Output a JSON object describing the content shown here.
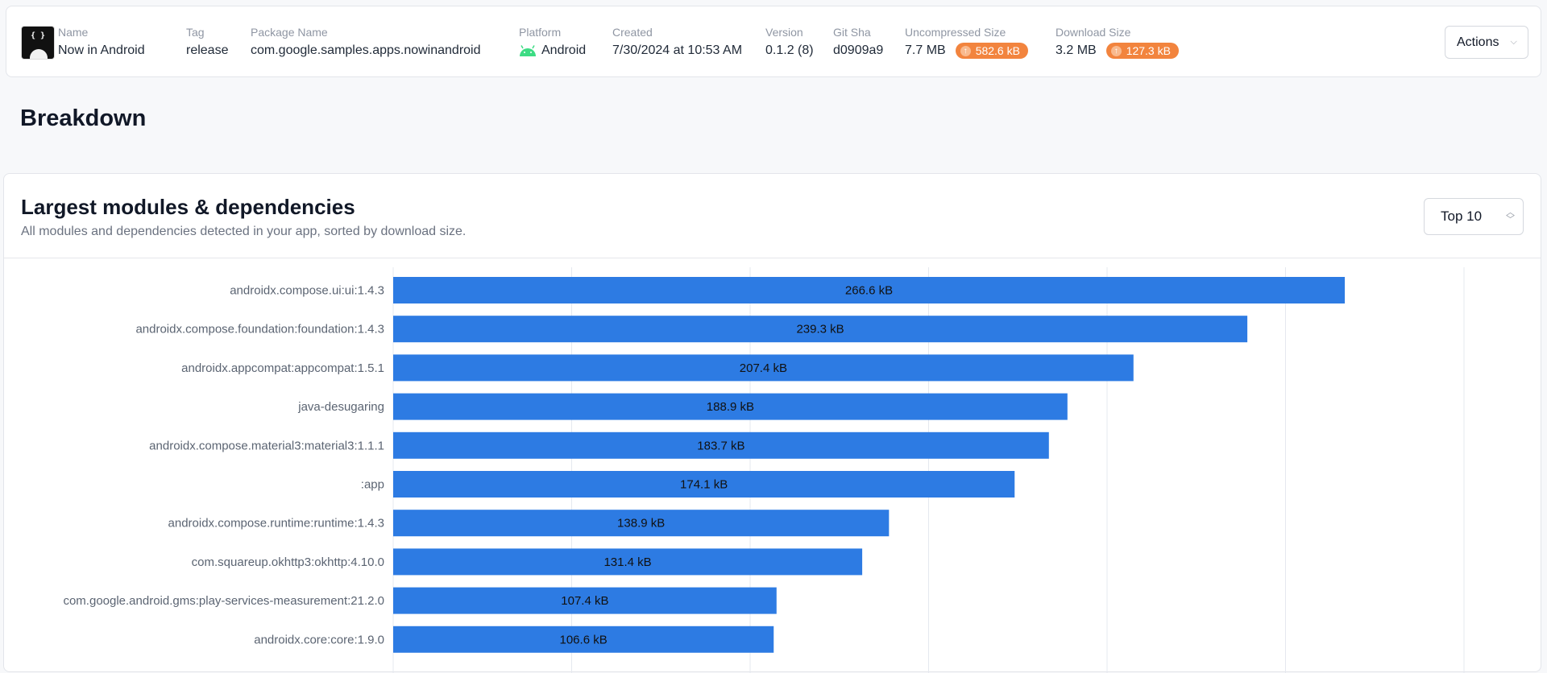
{
  "header": {
    "logo_icon": "android-code-logo",
    "fields": [
      {
        "label": "Name",
        "value": "Now in Android"
      },
      {
        "label": "Tag",
        "value": "release"
      },
      {
        "label": "Package Name",
        "value": "com.google.samples.apps.nowinandroid"
      },
      {
        "label": "Platform",
        "value": "Android",
        "icon": "android-icon"
      },
      {
        "label": "Created",
        "value": "7/30/2024 at 10:53 AM"
      },
      {
        "label": "Version",
        "value": "0.1.2 (8)"
      },
      {
        "label": "Git Sha",
        "value": "d0909a9"
      },
      {
        "label": "Uncompressed Size",
        "value": "7.7 MB",
        "delta": "582.6 kB"
      },
      {
        "label": "Download Size",
        "value": "3.2 MB",
        "delta": "127.3 kB"
      }
    ],
    "actions_label": "Actions"
  },
  "page_title": "Breakdown",
  "panel": {
    "title": "Largest modules & dependencies",
    "subtitle": "All modules and dependencies detected in your app, sorted by download size.",
    "select_value": "Top 10"
  },
  "colors": {
    "bar": "#2d7be3",
    "badge": "#f2843e",
    "link": "#3b82f6",
    "android": "#3ddc84"
  },
  "chart_data": {
    "type": "bar",
    "orientation": "horizontal",
    "categories": [
      "androidx.compose.ui:ui:1.4.3",
      "androidx.compose.foundation:foundation:1.4.3",
      "androidx.appcompat:appcompat:1.5.1",
      "java-desugaring",
      "androidx.compose.material3:material3:1.1.1",
      ":app",
      "androidx.compose.runtime:runtime:1.4.3",
      "com.squareup.okhttp3:okhttp:4.10.0",
      "com.google.android.gms:play-services-measurement:21.2.0",
      "androidx.core:core:1.9.0"
    ],
    "values": [
      266.6,
      239.3,
      207.4,
      188.9,
      183.7,
      174.1,
      138.9,
      131.4,
      107.4,
      106.6
    ],
    "labels": [
      "266.6 kB",
      "239.3 kB",
      "207.4 kB",
      "188.9 kB",
      "183.7 kB",
      "174.1 kB",
      "138.9 kB",
      "131.4 kB",
      "107.4 kB",
      "106.6 kB"
    ],
    "unit": "kB",
    "xlim": [
      0,
      300
    ],
    "grid_step": 50,
    "grid": true
  }
}
